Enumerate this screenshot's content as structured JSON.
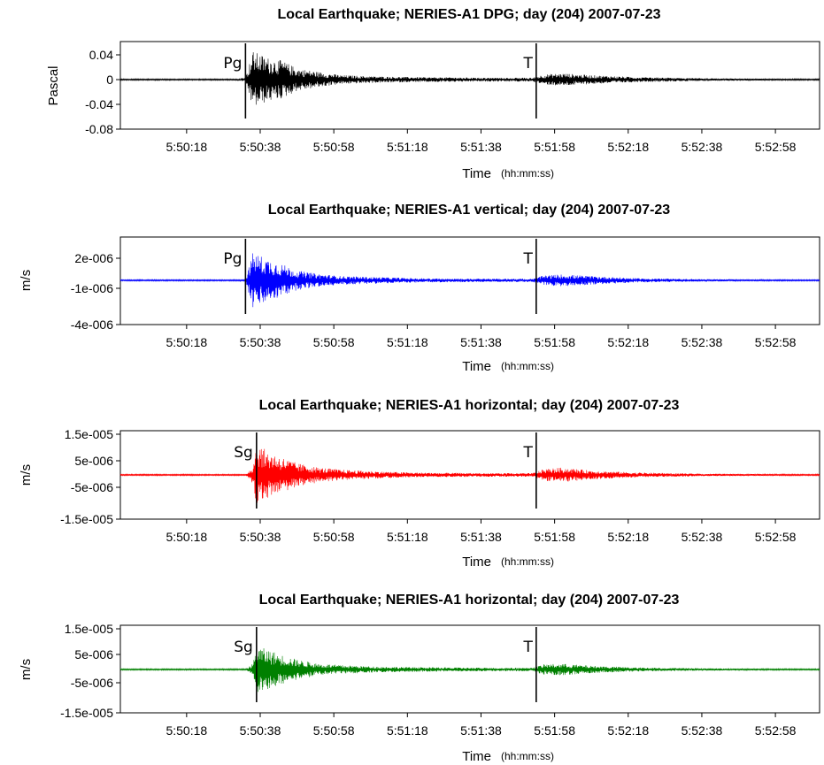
{
  "chart_data": [
    {
      "type": "line",
      "title": "Local Earthquake; NERIES-A1 DPG; day (204) 2007-07-23",
      "ylabel": "Pascal",
      "xlabel": "Time",
      "xlabel_unit": "(hh:mm:ss)",
      "xticks": [
        "5:50:18",
        "5:50:38",
        "5:50:58",
        "5:51:18",
        "5:51:38",
        "5:51:58",
        "5:52:18",
        "5:52:38",
        "5:52:58"
      ],
      "yticks": [
        "0.04",
        "0",
        "-0.04",
        "-0.08"
      ],
      "ylim": [
        -0.08,
        0.06
      ],
      "color": "#000000",
      "phases": [
        {
          "label": "Pg",
          "time": "5:50:34"
        },
        {
          "label": "T",
          "time": "5:51:53"
        }
      ],
      "series": [
        {
          "values": [
            {
              "x": "5:50:10",
              "y": 0.0005
            },
            {
              "x": "5:50:30",
              "y": 0.001
            },
            {
              "x": "5:50:34",
              "y": 0.003
            },
            {
              "x": "5:50:36",
              "y": 0.045
            },
            {
              "x": "5:50:38",
              "y": 0.04
            },
            {
              "x": "5:50:40",
              "y": 0.035
            },
            {
              "x": "5:50:44",
              "y": 0.03
            },
            {
              "x": "5:50:48",
              "y": 0.018
            },
            {
              "x": "5:50:54",
              "y": 0.012
            },
            {
              "x": "5:51:00",
              "y": 0.007
            },
            {
              "x": "5:51:10",
              "y": 0.005
            },
            {
              "x": "5:51:20",
              "y": 0.004
            },
            {
              "x": "5:51:40",
              "y": 0.003
            },
            {
              "x": "5:51:52",
              "y": 0.003
            },
            {
              "x": "5:51:55",
              "y": 0.008
            },
            {
              "x": "5:52:00",
              "y": 0.01
            },
            {
              "x": "5:52:08",
              "y": 0.007
            },
            {
              "x": "5:52:20",
              "y": 0.004
            },
            {
              "x": "5:52:40",
              "y": 0.002
            },
            {
              "x": "5:53:05",
              "y": 0.001
            }
          ]
        }
      ]
    },
    {
      "type": "line",
      "title": "Local Earthquake; NERIES-A1 vertical; day (204) 2007-07-23",
      "ylabel": "m/s",
      "xlabel": "Time",
      "xlabel_unit": "(hh:mm:ss)",
      "xticks": [
        "5:50:18",
        "5:50:38",
        "5:50:58",
        "5:51:18",
        "5:51:38",
        "5:51:58",
        "5:52:18",
        "5:52:38",
        "5:52:58"
      ],
      "yticks": [
        "2e-006",
        "-1e-006",
        "-4e-006"
      ],
      "ylim": [
        -4e-06,
        4e-06
      ],
      "color": "#0000ff",
      "phases": [
        {
          "label": "Pg",
          "time": "5:50:34"
        },
        {
          "label": "T",
          "time": "5:51:53"
        }
      ],
      "series": [
        {
          "values": [
            {
              "x": "5:50:10",
              "y": 1e-08
            },
            {
              "x": "5:50:30",
              "y": 2e-08
            },
            {
              "x": "5:50:34",
              "y": 1e-07
            },
            {
              "x": "5:50:36",
              "y": 2.6e-06
            },
            {
              "x": "5:50:38",
              "y": 2.3e-06
            },
            {
              "x": "5:50:40",
              "y": 2e-06
            },
            {
              "x": "5:50:44",
              "y": 1.5e-06
            },
            {
              "x": "5:50:48",
              "y": 9e-07
            },
            {
              "x": "5:50:54",
              "y": 6e-07
            },
            {
              "x": "5:51:00",
              "y": 4e-07
            },
            {
              "x": "5:51:10",
              "y": 3e-07
            },
            {
              "x": "5:51:20",
              "y": 2e-07
            },
            {
              "x": "5:51:40",
              "y": 1.5e-07
            },
            {
              "x": "5:51:52",
              "y": 1.5e-07
            },
            {
              "x": "5:51:55",
              "y": 4.5e-07
            },
            {
              "x": "5:52:00",
              "y": 5.5e-07
            },
            {
              "x": "5:52:08",
              "y": 4e-07
            },
            {
              "x": "5:52:20",
              "y": 2e-07
            },
            {
              "x": "5:52:40",
              "y": 1e-07
            },
            {
              "x": "5:53:05",
              "y": 5e-08
            }
          ]
        }
      ]
    },
    {
      "type": "line",
      "title": "Local Earthquake; NERIES-A1 horizontal; day (204) 2007-07-23",
      "ylabel": "m/s",
      "xlabel": "Time",
      "xlabel_unit": "(hh:mm:ss)",
      "xticks": [
        "5:50:18",
        "5:50:38",
        "5:50:58",
        "5:51:18",
        "5:51:38",
        "5:51:58",
        "5:52:18",
        "5:52:38",
        "5:52:58"
      ],
      "yticks": [
        "1.5e-005",
        "5e-006",
        "-5e-006",
        "-1.5e-005"
      ],
      "ylim": [
        -1.5e-05,
        1.5e-05
      ],
      "color": "#ff0000",
      "phases": [
        {
          "label": "Sg",
          "time": "5:50:37"
        },
        {
          "label": "T",
          "time": "5:51:53"
        }
      ],
      "series": [
        {
          "values": [
            {
              "x": "5:50:10",
              "y": 5e-08
            },
            {
              "x": "5:50:34",
              "y": 1e-07
            },
            {
              "x": "5:50:36",
              "y": 3e-06
            },
            {
              "x": "5:50:37",
              "y": 1.1e-05
            },
            {
              "x": "5:50:40",
              "y": 8e-06
            },
            {
              "x": "5:50:44",
              "y": 6e-06
            },
            {
              "x": "5:50:48",
              "y": 4e-06
            },
            {
              "x": "5:50:54",
              "y": 2.5e-06
            },
            {
              "x": "5:51:00",
              "y": 1.8e-06
            },
            {
              "x": "5:51:10",
              "y": 1.2e-06
            },
            {
              "x": "5:51:20",
              "y": 8e-07
            },
            {
              "x": "5:51:40",
              "y": 6e-07
            },
            {
              "x": "5:51:52",
              "y": 6e-07
            },
            {
              "x": "5:51:55",
              "y": 2e-06
            },
            {
              "x": "5:52:00",
              "y": 2.5e-06
            },
            {
              "x": "5:52:08",
              "y": 1.5e-06
            },
            {
              "x": "5:52:20",
              "y": 8e-07
            },
            {
              "x": "5:52:40",
              "y": 4e-07
            },
            {
              "x": "5:53:05",
              "y": 2e-07
            }
          ]
        }
      ]
    },
    {
      "type": "line",
      "title": "Local Earthquake; NERIES-A1 horizontal; day (204) 2007-07-23",
      "ylabel": "m/s",
      "xlabel": "Time",
      "xlabel_unit": "(hh:mm:ss)",
      "xticks": [
        "5:50:18",
        "5:50:38",
        "5:50:58",
        "5:51:18",
        "5:51:38",
        "5:51:58",
        "5:52:18",
        "5:52:38",
        "5:52:58"
      ],
      "yticks": [
        "1.5e-005",
        "5e-006",
        "-5e-006",
        "-1.5e-005"
      ],
      "ylim": [
        -1.5e-05,
        1.5e-05
      ],
      "color": "#008000",
      "phases": [
        {
          "label": "Sg",
          "time": "5:50:37"
        },
        {
          "label": "T",
          "time": "5:51:53"
        }
      ],
      "series": [
        {
          "values": [
            {
              "x": "5:50:10",
              "y": 5e-08
            },
            {
              "x": "5:50:34",
              "y": 1e-07
            },
            {
              "x": "5:50:36",
              "y": 2e-06
            },
            {
              "x": "5:50:37",
              "y": 8e-06
            },
            {
              "x": "5:50:40",
              "y": 7e-06
            },
            {
              "x": "5:50:44",
              "y": 5e-06
            },
            {
              "x": "5:50:48",
              "y": 3.5e-06
            },
            {
              "x": "5:50:54",
              "y": 2e-06
            },
            {
              "x": "5:51:00",
              "y": 1.5e-06
            },
            {
              "x": "5:51:10",
              "y": 1e-06
            },
            {
              "x": "5:51:20",
              "y": 8e-07
            },
            {
              "x": "5:51:40",
              "y": 6e-07
            },
            {
              "x": "5:51:52",
              "y": 6e-07
            },
            {
              "x": "5:51:55",
              "y": 1.8e-06
            },
            {
              "x": "5:52:00",
              "y": 2e-06
            },
            {
              "x": "5:52:08",
              "y": 1.3e-06
            },
            {
              "x": "5:52:20",
              "y": 7e-07
            },
            {
              "x": "5:52:40",
              "y": 4e-07
            },
            {
              "x": "5:53:05",
              "y": 2e-07
            }
          ]
        }
      ]
    }
  ]
}
